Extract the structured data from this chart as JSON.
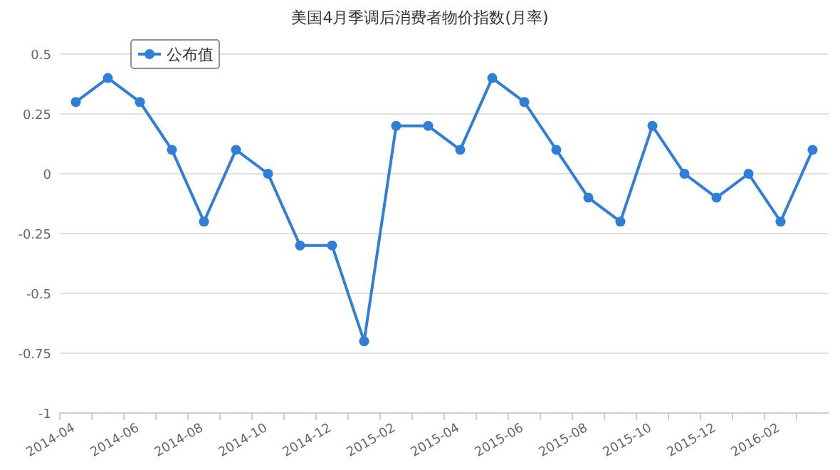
{
  "chart_data": {
    "type": "line",
    "title": "美国4月季调后消费者物价指数(月率)",
    "categories": [
      "2014-04",
      null,
      "2014-06",
      null,
      "2014-08",
      null,
      "2014-10",
      null,
      "2014-12",
      null,
      "2015-02",
      null,
      "2015-04",
      null,
      "2015-06",
      null,
      "2015-08",
      null,
      "2015-10",
      null,
      "2015-12",
      null,
      "2016-02",
      null
    ],
    "series": [
      {
        "name": "公布值",
        "color": "#2f7ed8",
        "values": [
          0.3,
          0.4,
          0.3,
          0.1,
          -0.2,
          0.1,
          0,
          -0.3,
          -0.3,
          -0.7,
          0.2,
          0.2,
          0.1,
          0.4,
          0.3,
          0.1,
          -0.1,
          -0.2,
          0.2,
          0,
          -0.1,
          0,
          -0.2,
          0.1
        ]
      }
    ],
    "ylim": [
      -1,
      0.5
    ],
    "yticks": [
      0.5,
      0.25,
      0,
      -0.25,
      -0.5,
      -0.75,
      -1
    ],
    "grid": "y",
    "legend": "top left",
    "marker": "circle",
    "line_style": "solid"
  }
}
